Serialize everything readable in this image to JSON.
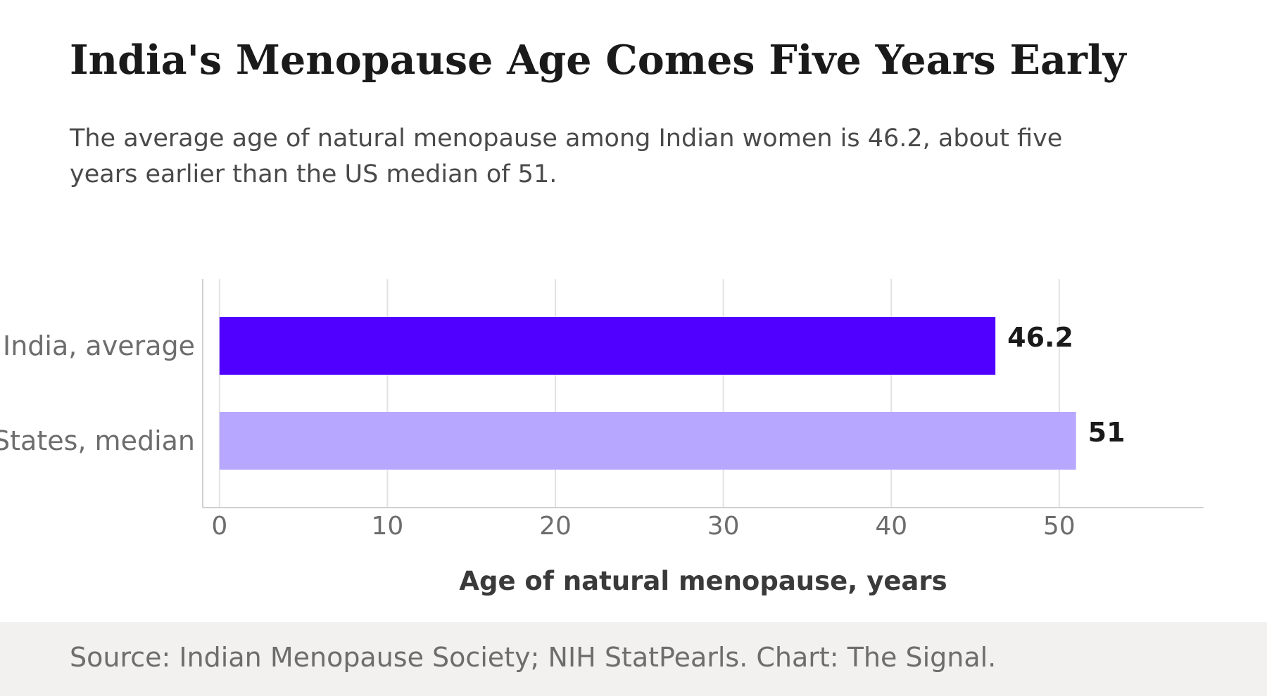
{
  "title": "India's Menopause Age Comes Five Years Early",
  "subtitle": "The average age of natural menopause among Indian women is 46.2, about five years earlier than the US median of 51.",
  "source": "Source: Indian Menopause Society; NIH StatPearls. Chart: The Signal.",
  "colors": {
    "india": "#5000ff",
    "us": "#b7a7ff",
    "grid": "#e3e3e3",
    "axis": "#d0d0d0",
    "category_text": "#6d6d6d",
    "value_text": "#1a1a1a"
  },
  "chart_data": {
    "type": "bar",
    "orientation": "horizontal",
    "categories": [
      "India, average",
      "United States, median"
    ],
    "values": [
      46.2,
      51
    ],
    "value_labels": [
      "46.2",
      "51"
    ],
    "bar_colors": [
      "#5000ff",
      "#b7a7ff"
    ],
    "xlabel": "Age of natural menopause, years",
    "ylabel": "",
    "xlim": [
      -1,
      58.6
    ],
    "xticks": [
      0,
      10,
      20,
      30,
      40,
      50
    ],
    "xtick_labels": [
      "0",
      "10",
      "20",
      "30",
      "40",
      "50"
    ],
    "grid": true,
    "legend": "none"
  }
}
